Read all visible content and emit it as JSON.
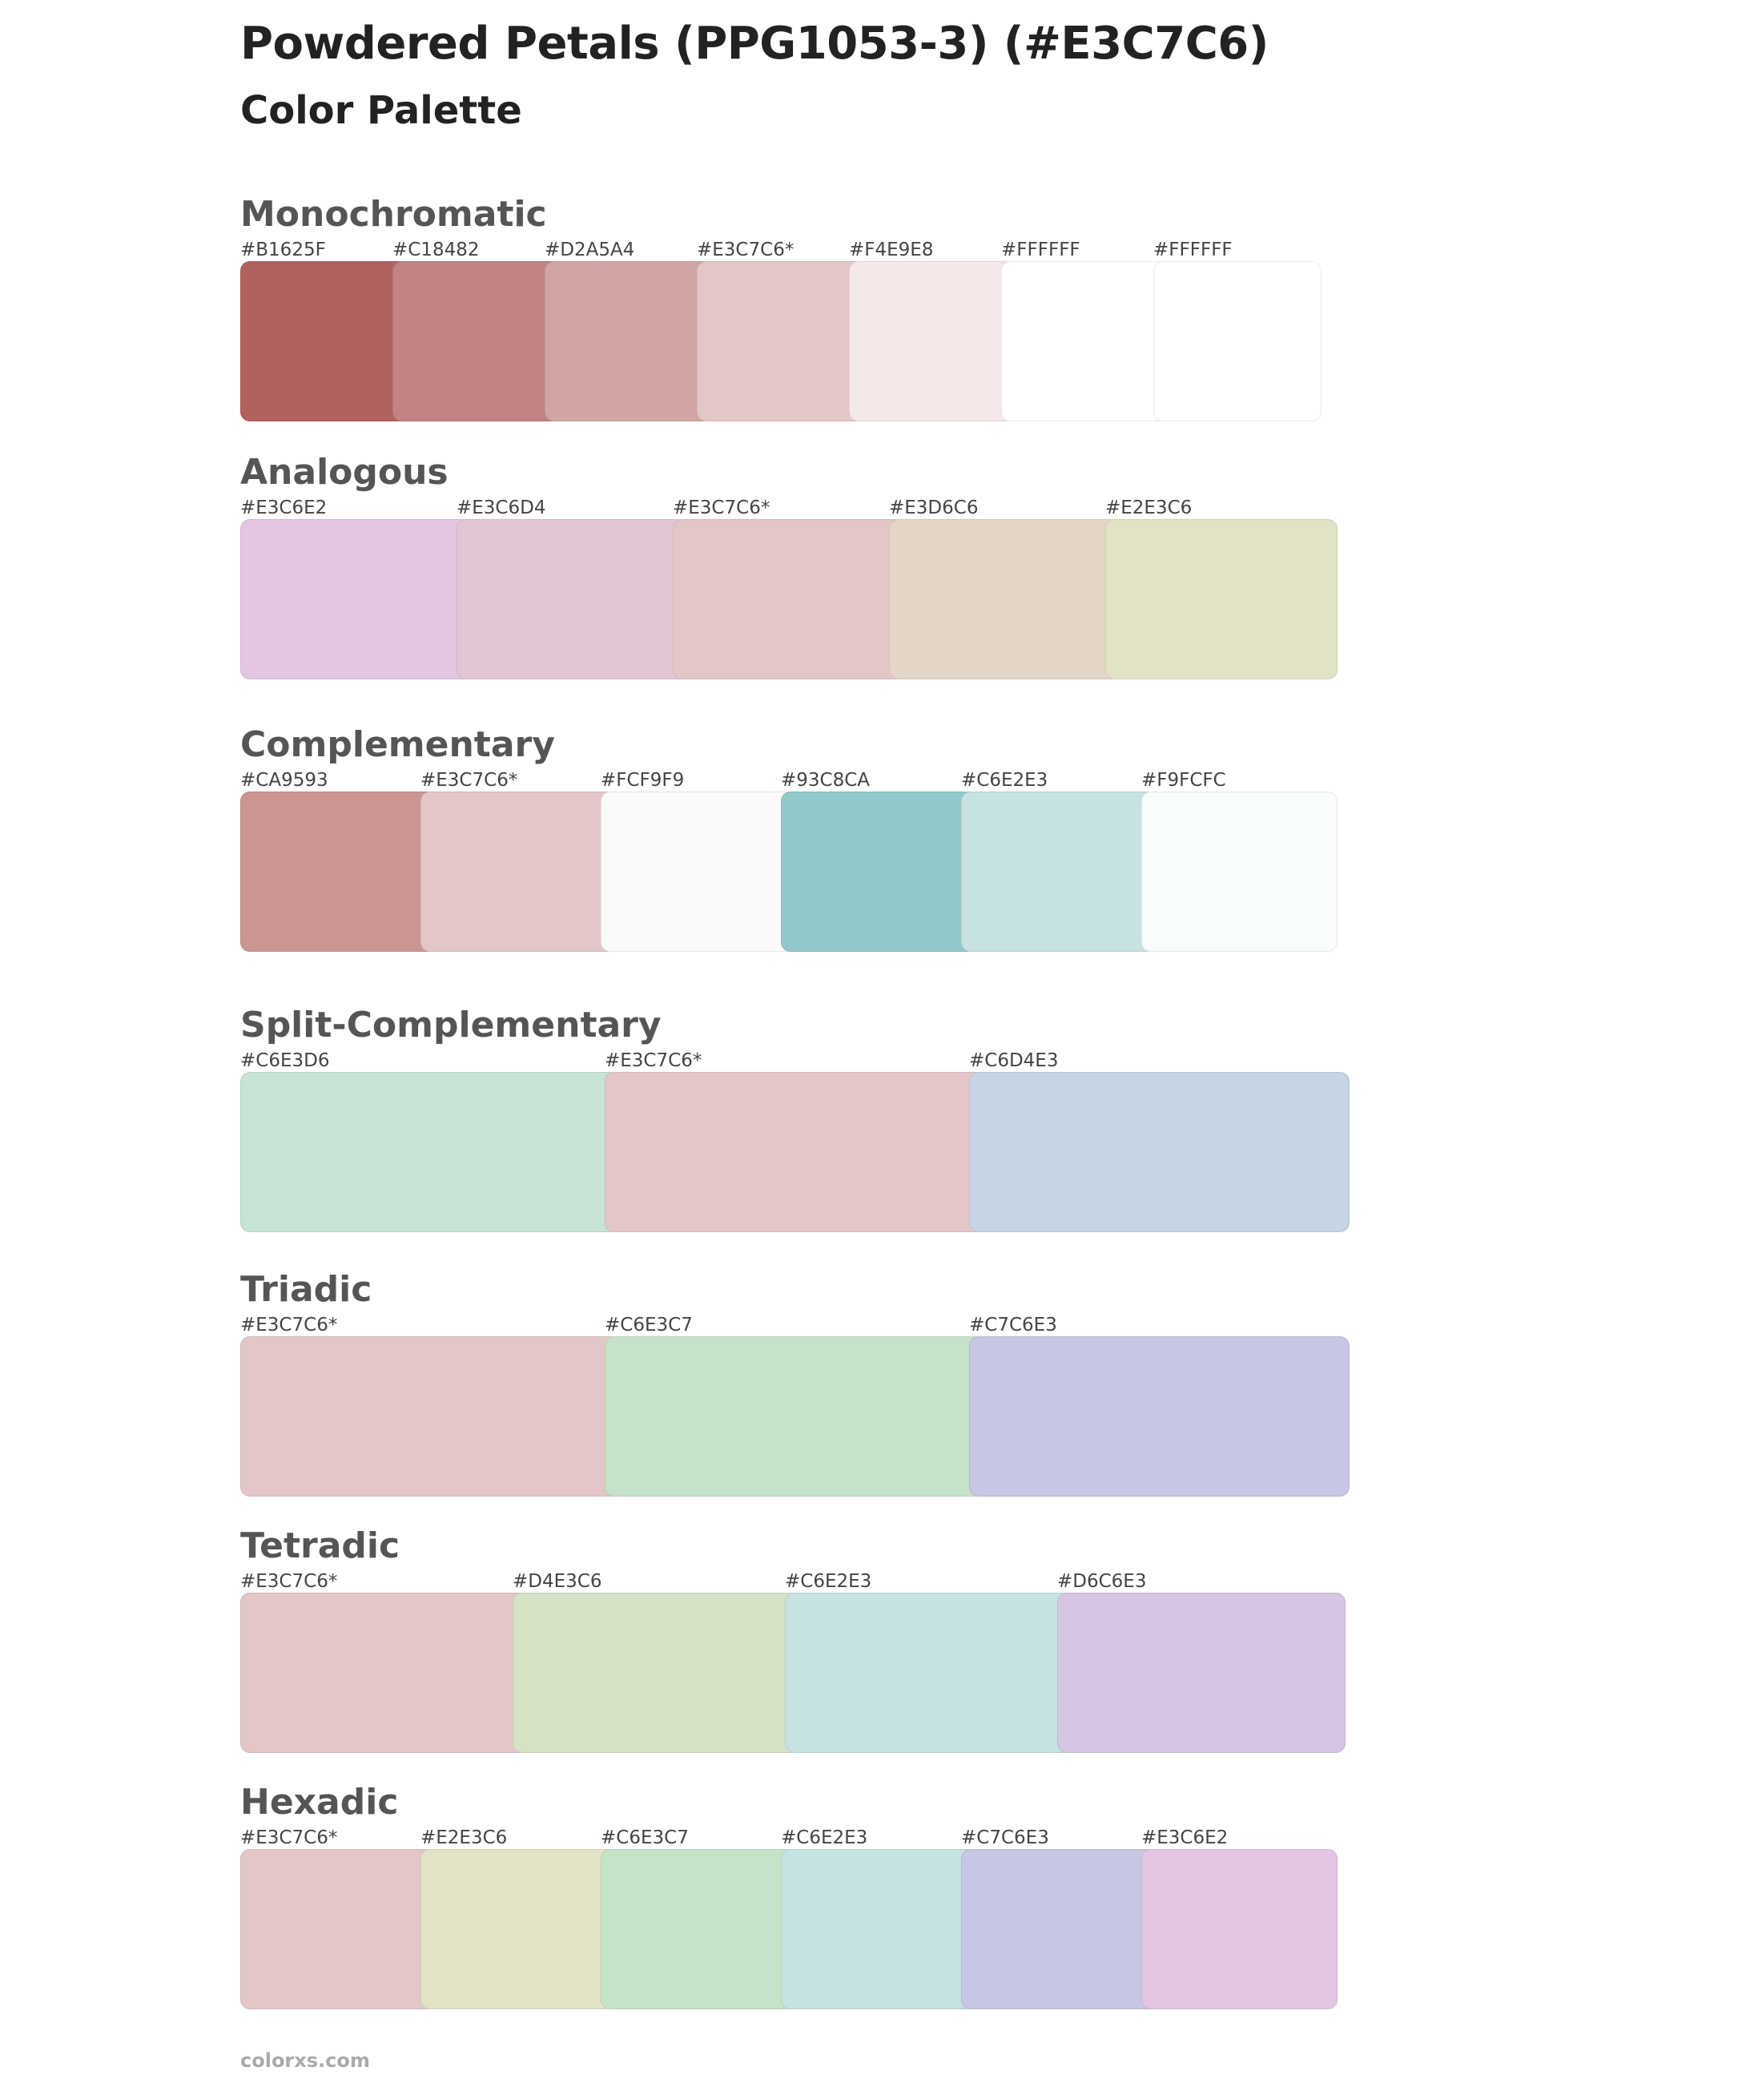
{
  "header": {
    "title": "Powdered Petals (PPG1053-3) (#E3C7C6)",
    "subtitle": "Color Palette"
  },
  "sections": [
    {
      "key": "mono",
      "title": "Monochromatic",
      "colors": [
        {
          "label": "#B1625F",
          "hex": "#B1625F"
        },
        {
          "label": "#C18482",
          "hex": "#C18482"
        },
        {
          "label": "#D2A5A4",
          "hex": "#D2A5A4"
        },
        {
          "label": "#E3C7C6*",
          "hex": "#E3C7C6"
        },
        {
          "label": "#F4E9E8",
          "hex": "#F4E9E8"
        },
        {
          "label": "#FFFFFF",
          "hex": "#FFFFFF"
        },
        {
          "label": "#FFFFFF",
          "hex": "#FFFFFF"
        }
      ]
    },
    {
      "key": "analogous",
      "title": "Analogous",
      "colors": [
        {
          "label": "#E3C6E2",
          "hex": "#E3C6E2"
        },
        {
          "label": "#E3C6D4",
          "hex": "#E3C6D4"
        },
        {
          "label": "#E3C7C6*",
          "hex": "#E3C7C6"
        },
        {
          "label": "#E3D6C6",
          "hex": "#E3D6C6"
        },
        {
          "label": "#E2E3C6",
          "hex": "#E2E3C6"
        }
      ]
    },
    {
      "key": "complementary",
      "title": "Complementary",
      "colors": [
        {
          "label": "#CA9593",
          "hex": "#CA9593"
        },
        {
          "label": "#E3C7C6*",
          "hex": "#E3C7C6"
        },
        {
          "label": "#FCF9F9",
          "hex": "#FCF9F9"
        },
        {
          "label": "#93C8CA",
          "hex": "#93C8CA"
        },
        {
          "label": "#C6E2E3",
          "hex": "#C6E2E3"
        },
        {
          "label": "#F9FCFC",
          "hex": "#F9FCFC"
        }
      ]
    },
    {
      "key": "split",
      "title": "Split-Complementary",
      "colors": [
        {
          "label": "#C6E3D6",
          "hex": "#C6E3D6"
        },
        {
          "label": "#E3C7C6*",
          "hex": "#E3C7C6"
        },
        {
          "label": "#C6D4E3",
          "hex": "#C6D4E3"
        }
      ]
    },
    {
      "key": "triadic",
      "title": "Triadic",
      "colors": [
        {
          "label": "#E3C7C6*",
          "hex": "#E3C7C6"
        },
        {
          "label": "#C6E3C7",
          "hex": "#C6E3C7"
        },
        {
          "label": "#C7C6E3",
          "hex": "#C7C6E3"
        }
      ]
    },
    {
      "key": "tetradic",
      "title": "Tetradic",
      "colors": [
        {
          "label": "#E3C7C6*",
          "hex": "#E3C7C6"
        },
        {
          "label": "#D4E3C6",
          "hex": "#D4E3C6"
        },
        {
          "label": "#C6E2E3",
          "hex": "#C6E2E3"
        },
        {
          "label": "#D6C6E3",
          "hex": "#D6C6E3"
        }
      ]
    },
    {
      "key": "hexadic",
      "title": "Hexadic",
      "colors": [
        {
          "label": "#E3C7C6*",
          "hex": "#E3C7C6"
        },
        {
          "label": "#E2E3C6",
          "hex": "#E2E3C6"
        },
        {
          "label": "#C6E3C7",
          "hex": "#C6E3C7"
        },
        {
          "label": "#C6E2E3",
          "hex": "#C6E2E3"
        },
        {
          "label": "#C7C6E3",
          "hex": "#C7C6E3"
        },
        {
          "label": "#E3C6E2",
          "hex": "#E3C6E2"
        }
      ]
    }
  ],
  "footer": {
    "site": "colorxs.com"
  }
}
